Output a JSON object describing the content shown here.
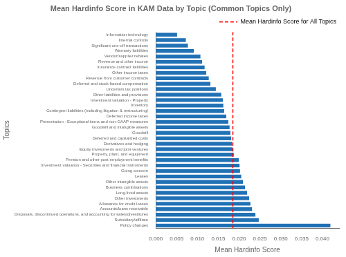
{
  "chart_data": {
    "type": "bar",
    "orientation": "horizontal",
    "title": "Mean Hardinfo Score in KAM Data by Topic (Common Topics Only)",
    "xlabel": "Mean Hardinfo Score",
    "ylabel": "Topics",
    "color": "#2171b5",
    "grid": false,
    "legend": "upper right",
    "xlim": [
      0,
      0.044
    ],
    "xticks": [
      {
        "value": 0,
        "label": "0.000"
      },
      0.005,
      {
        "value": 0.01,
        "label": "0.010"
      },
      0.015,
      {
        "value": 0.02,
        "label": "0.020"
      },
      0.025,
      {
        "value": 0.03,
        "label": "0.030"
      },
      0.035,
      {
        "value": 0.04,
        "label": "0.040"
      }
    ],
    "reference_line": {
      "name": "Mean Hardinfo Score for All Topics",
      "value": 0.0185,
      "color": "red",
      "line_style": "dashed"
    },
    "categories": [
      "Information technology",
      "Internal controls",
      "Significant one-off transactions",
      "Warranty liabilities",
      "Vendor/supplier rebates",
      "Revenue and other income",
      "Insurance contract liabilities",
      "Other income taxes",
      "Revenue from customer contracts",
      "Deferred and stock-based compensation",
      "Uncertain tax positions",
      "Other liabilities and provisions",
      "Investment valuation - Property",
      "Inventory",
      "Contingent liabilities (including litigation & restructuring)",
      "Deferred income taxes",
      "Presentation - Exceptional items and non-GAAP measures",
      "Goodwill and intangible assets",
      "Goodwill",
      "Deferred and capitalized costs",
      "Derivatives and hedging",
      "Equity investments and joint ventures",
      "Property, plant, and equipment",
      "Pension and other post-employment benefits",
      "Investment valuation - Securities and financial instruments",
      "Going concern",
      "Leases",
      "Other intangible assets",
      "Business combinations",
      "Long-lived assets",
      "Other investments",
      "Allowance for credit losses",
      "Accounts/loans receivable",
      "Disposals, discontinued operations, and accounting for sales/divestitures",
      "Subsidiary/affiliate",
      "Policy changes"
    ],
    "values": [
      0.0052,
      0.0073,
      0.0078,
      0.0092,
      0.0108,
      0.0112,
      0.0118,
      0.0122,
      0.0128,
      0.0132,
      0.0145,
      0.0158,
      0.0162,
      0.0163,
      0.0165,
      0.017,
      0.0175,
      0.0178,
      0.018,
      0.0182,
      0.0184,
      0.0185,
      0.0188,
      0.02,
      0.0202,
      0.0203,
      0.0206,
      0.021,
      0.0215,
      0.022,
      0.0225,
      0.0228,
      0.0232,
      0.024,
      0.0248,
      0.042
    ]
  }
}
